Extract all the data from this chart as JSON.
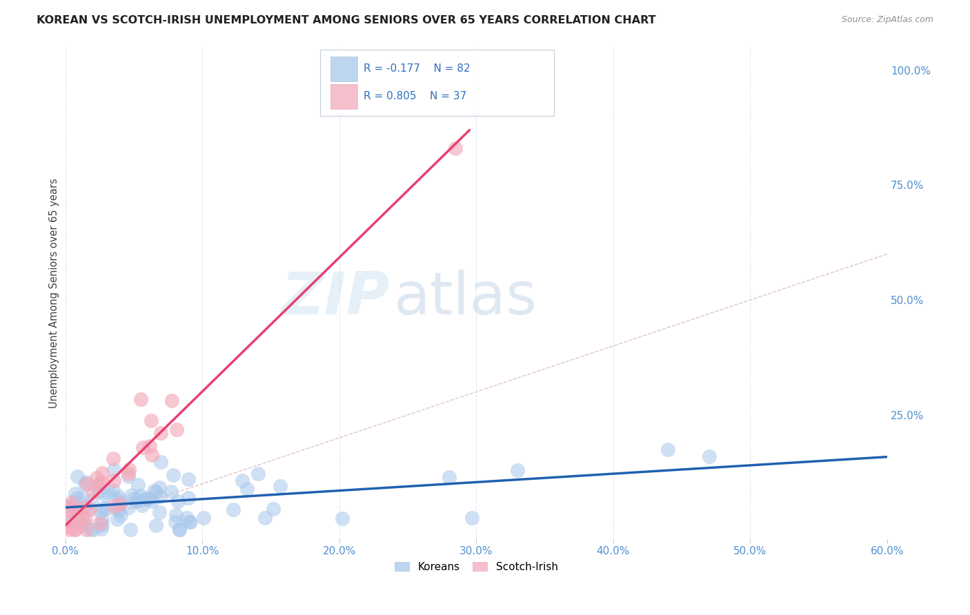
{
  "title": "KOREAN VS SCOTCH-IRISH UNEMPLOYMENT AMONG SENIORS OVER 65 YEARS CORRELATION CHART",
  "source": "Source: ZipAtlas.com",
  "ylabel": "Unemployment Among Seniors over 65 years",
  "xlim": [
    0.0,
    0.6
  ],
  "ylim": [
    -0.02,
    1.05
  ],
  "korean_R": -0.177,
  "korean_N": 82,
  "scotch_R": 0.805,
  "scotch_N": 37,
  "korean_color": "#A8C8EC",
  "scotch_color": "#F4AABB",
  "korean_line_color": "#2060B0",
  "scotch_line_color": "#E84070",
  "diagonal_color": "#C8D8E8",
  "watermark_zip": "ZIP",
  "watermark_atlas": "atlas",
  "legend_korean": "Koreans",
  "legend_scotch": "Scotch-Irish",
  "legend_text_color": "#3070C0",
  "legend_r_color": "#3070C0",
  "right_axis_color": "#5090D0"
}
